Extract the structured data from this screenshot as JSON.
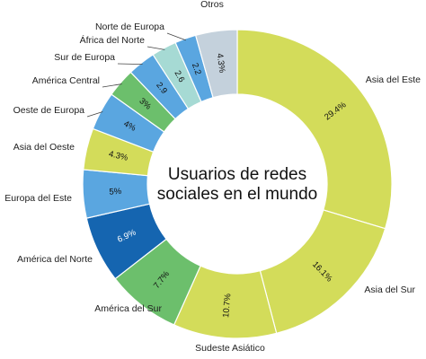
{
  "chart_data": {
    "type": "pie",
    "donut": true,
    "title": "Usuarios de redes sociales en el mundo",
    "title_lines": [
      "Usuarios de redes",
      "sociales en el mundo"
    ],
    "legend": "none",
    "slices": [
      {
        "label": "Asia del Este",
        "value": 29.4,
        "value_text": "29.4%",
        "color": "#d3dc5a"
      },
      {
        "label": "Asia del Sur",
        "value": 16.1,
        "value_text": "16.1%",
        "color": "#d3dc5a"
      },
      {
        "label": "Sudeste Asiático",
        "value": 10.7,
        "value_text": "10.7%",
        "color": "#d3dc5a"
      },
      {
        "label": "América del Sur",
        "value": 7.7,
        "value_text": "7.7%",
        "color": "#6cbf6c"
      },
      {
        "label": "América del Norte",
        "value": 6.9,
        "value_text": "6.9%",
        "color": "#1565b0"
      },
      {
        "label": "Europa del Este",
        "value": 5,
        "value_text": "5%",
        "color": "#5aa6e0"
      },
      {
        "label": "Asia del Oeste",
        "value": 4.3,
        "value_text": "4.3%",
        "color": "#d3dc5a"
      },
      {
        "label": "Oeste de Europa",
        "value": 4,
        "value_text": "4%",
        "color": "#5aa6e0"
      },
      {
        "label": "América Central",
        "value": 3,
        "value_text": "3%",
        "color": "#6cbf6c"
      },
      {
        "label": "Sur de Europa",
        "value": 2.9,
        "value_text": "2.9",
        "color": "#5aa6e0"
      },
      {
        "label": "África del Norte",
        "value": 2.6,
        "value_text": "2.6",
        "color": "#a6dad4"
      },
      {
        "label": "Norte de Europa",
        "value": 2.2,
        "value_text": "2.2",
        "color": "#5aa6e0"
      },
      {
        "label": "Otros",
        "value": 4.3,
        "value_text": "4.3%",
        "color": "#c4d1dc"
      }
    ]
  }
}
